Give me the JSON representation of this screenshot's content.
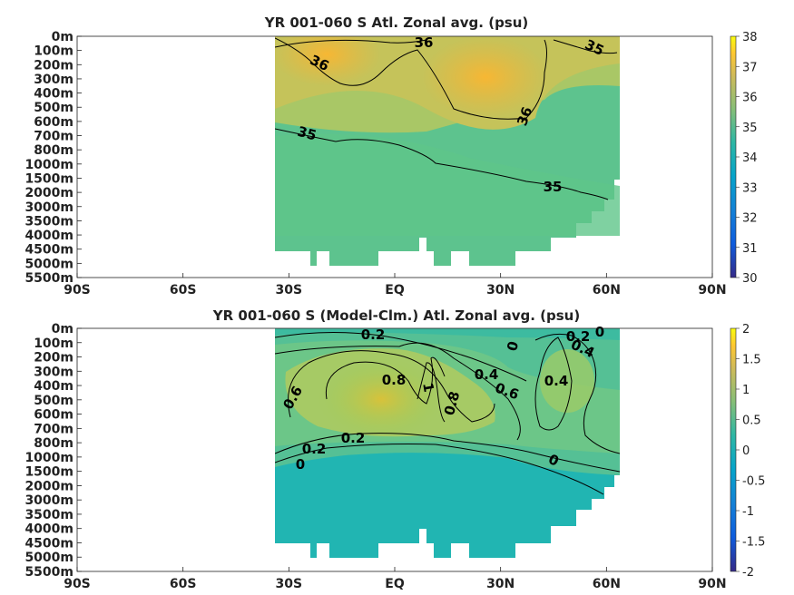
{
  "chart_data": [
    {
      "type": "heatmap",
      "title": "YR 001-060 S Atl. Zonal avg. (psu)",
      "x_ticks": [
        "90S",
        "60S",
        "30S",
        "EQ",
        "30N",
        "60N",
        "90N"
      ],
      "y_ticks": [
        "0m",
        "100m",
        "200m",
        "300m",
        "400m",
        "500m",
        "600m",
        "700m",
        "800m",
        "1000m",
        "1500m",
        "2000m",
        "3000m",
        "3500m",
        "4000m",
        "4500m",
        "5000m",
        "5500m"
      ],
      "xlim": [
        -90,
        90
      ],
      "ylim": [
        0,
        5500
      ],
      "colorbar": {
        "min": 30,
        "max": 38,
        "ticks": [
          "38",
          "37",
          "36",
          "35",
          "34",
          "33",
          "32",
          "31",
          "30"
        ]
      },
      "contour_labels": [
        "36",
        "36",
        "35",
        "36",
        "35",
        "35"
      ]
    },
    {
      "type": "heatmap",
      "title": "YR 001-060 S (Model-Clm.) Atl. Zonal avg. (psu)",
      "x_ticks": [
        "90S",
        "60S",
        "30S",
        "EQ",
        "30N",
        "60N",
        "90N"
      ],
      "y_ticks": [
        "0m",
        "100m",
        "200m",
        "300m",
        "400m",
        "500m",
        "600m",
        "700m",
        "800m",
        "1000m",
        "1500m",
        "2000m",
        "3000m",
        "3500m",
        "4000m",
        "4500m",
        "5000m",
        "5500m"
      ],
      "xlim": [
        -90,
        90
      ],
      "ylim": [
        0,
        5500
      ],
      "colorbar": {
        "min": -2,
        "max": 2,
        "ticks": [
          "2",
          "1.5",
          "1",
          "0.5",
          "0",
          "-0.5",
          "-1",
          "-1.5",
          "-2"
        ]
      },
      "contour_labels": [
        "0.2",
        "0",
        "0.2",
        "0.4",
        "0",
        "0.8",
        "1",
        "0.4",
        "0.6",
        "0.8",
        "0.6",
        "0.4",
        "0.2",
        "0.2",
        "0",
        "0"
      ]
    }
  ]
}
